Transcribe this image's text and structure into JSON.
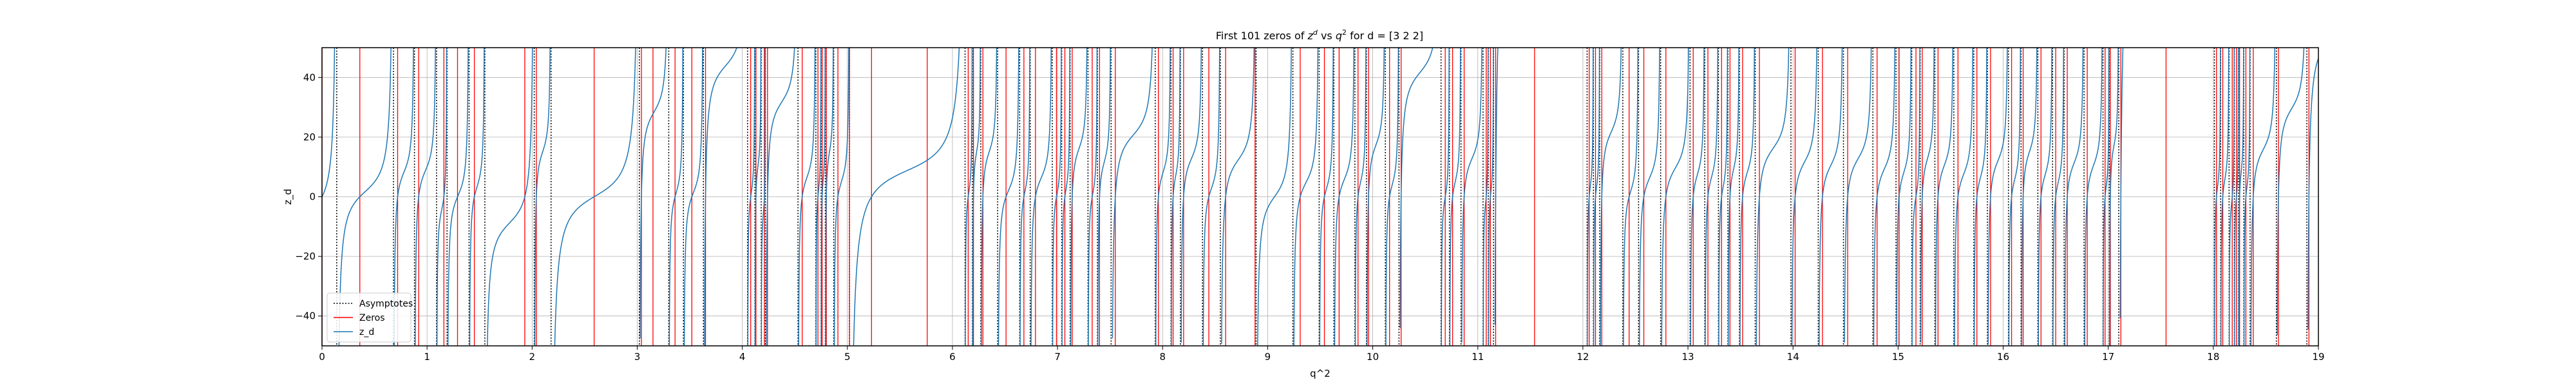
{
  "chart_data": {
    "type": "line",
    "title": "First 101 zeros of z^d vs q^2 for d = [3 2 2]",
    "title_parts": {
      "prefix": "First 101 zeros of ",
      "z": "z",
      "sup_d": "d",
      "vs": " vs ",
      "q": "q",
      "sup_2": "2",
      "suffix": " for d = [3 2 2]"
    },
    "xlabel": "q^2",
    "ylabel": "z_d",
    "xlim": [
      0,
      19
    ],
    "ylim": [
      -50,
      50
    ],
    "xticks": [
      0,
      1,
      2,
      3,
      4,
      5,
      6,
      7,
      8,
      9,
      10,
      11,
      12,
      13,
      14,
      15,
      16,
      17,
      18,
      19
    ],
    "yticks": [
      -40,
      -20,
      0,
      20,
      40
    ],
    "grid": true,
    "legend": {
      "placement": "lower-left",
      "entries": [
        {
          "label": "Asymptotes",
          "color": "#000000",
          "style": "dotted"
        },
        {
          "label": "Zeros",
          "color": "#ff0000",
          "style": "solid"
        },
        {
          "label": "z_d",
          "color": "#1f77b4",
          "style": "solid"
        }
      ]
    },
    "colors": {
      "asymptotes": "#000000",
      "zeros": "#ff0000",
      "z_d": "#1f77b4"
    },
    "zeros": [
      0.0,
      0.36,
      0.72,
      0.92,
      1.16,
      1.29,
      1.45,
      1.93,
      2.04,
      2.59,
      3.04,
      3.15,
      3.36,
      3.52,
      3.65,
      4.08,
      4.13,
      4.21,
      4.24,
      4.57,
      4.72,
      4.76,
      4.8,
      4.91,
      5.02,
      5.23,
      5.76,
      6.15,
      6.2,
      6.29,
      6.51,
      6.68,
      6.79,
      6.99,
      7.07,
      7.14,
      7.33,
      7.4,
      7.55,
      7.96,
      8.1,
      8.2,
      8.44,
      8.6,
      8.88,
      9.31,
      9.54,
      9.68,
      9.86,
      9.96,
      10.16,
      10.27,
      10.69,
      10.76,
      10.87,
      11.08,
      11.12,
      11.17,
      11.54,
      12.06,
      12.12,
      12.18,
      12.44,
      12.58,
      12.79,
      13.05,
      13.19,
      13.32,
      13.4,
      13.52,
      13.68,
      14.02,
      14.28,
      14.52,
      14.8,
      15.01,
      15.17,
      15.23,
      15.38,
      15.57,
      15.75,
      15.88,
      16.08,
      16.19,
      16.36,
      16.5,
      16.61,
      16.8,
      16.97,
      17.02,
      17.12,
      17.55,
      18.03,
      18.09,
      18.18,
      18.22,
      18.25,
      18.31,
      18.38,
      18.62,
      18.91
    ],
    "asymptotes": [
      0.14,
      0.68,
      0.88,
      1.09,
      1.19,
      1.4,
      1.55,
      2.02,
      2.18,
      3.02,
      3.3,
      3.44,
      3.63,
      4.05,
      4.12,
      4.18,
      4.22,
      4.53,
      4.7,
      4.75,
      4.79,
      4.87,
      5.02,
      6.12,
      6.19,
      6.27,
      6.43,
      6.64,
      6.74,
      6.95,
      7.04,
      7.12,
      7.29,
      7.38,
      7.51,
      7.93,
      8.08,
      8.17,
      8.38,
      8.55,
      8.89,
      9.24,
      9.49,
      9.63,
      9.83,
      9.94,
      10.12,
      10.25,
      10.65,
      10.73,
      10.84,
      11.05,
      11.1,
      11.15,
      12.04,
      12.1,
      12.16,
      12.38,
      12.53,
      12.74,
      13.02,
      13.16,
      13.29,
      13.38,
      13.49,
      13.64,
      13.98,
      14.24,
      14.48,
      14.76,
      14.98,
      15.13,
      15.21,
      15.35,
      15.53,
      15.72,
      15.85,
      16.05,
      16.17,
      16.33,
      16.47,
      16.58,
      16.77,
      16.95,
      17.01,
      17.1,
      18.01,
      18.07,
      18.15,
      18.2,
      18.24,
      18.29,
      18.35,
      18.6,
      18.89
    ]
  }
}
